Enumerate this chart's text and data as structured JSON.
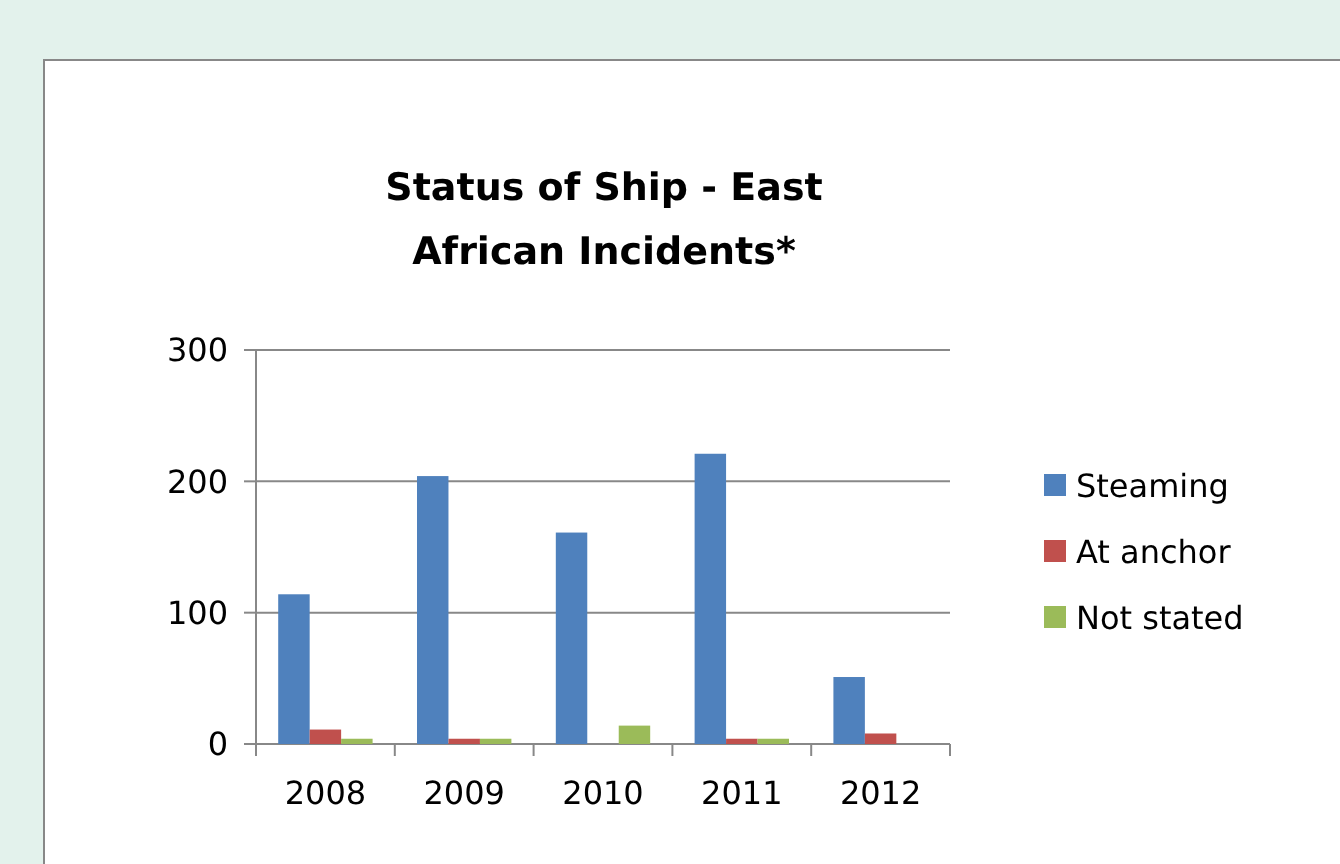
{
  "chart_data": {
    "type": "bar",
    "title": "Status of Ship - East African Incidents*",
    "categories": [
      "2008",
      "2009",
      "2010",
      "2011",
      "2012"
    ],
    "series": [
      {
        "name": "Steaming",
        "color": "#4f81bd",
        "values": [
          114,
          204,
          161,
          221,
          51
        ]
      },
      {
        "name": "At anchor",
        "color": "#c0504d",
        "values": [
          11,
          4,
          0,
          4,
          8
        ]
      },
      {
        "name": "Not stated",
        "color": "#9bbb59",
        "values": [
          4,
          4,
          14,
          4,
          0
        ]
      }
    ],
    "ylim": [
      0,
      300
    ],
    "yticks": [
      0,
      100,
      200,
      300
    ],
    "grid": "y",
    "legend": "right"
  }
}
